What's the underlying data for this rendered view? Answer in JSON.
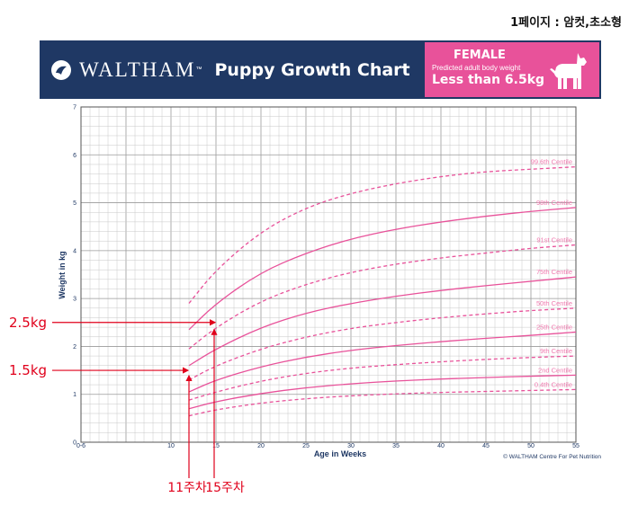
{
  "page_note": "1페이지 : 암컷,초소형",
  "banner": {
    "brand": "WALTHAM",
    "tm": "™",
    "title": "Puppy Growth Chart",
    "sex": "FEMALE",
    "predicted_label": "Predicted adult body weight",
    "weight_range": "Less than 6.5kg",
    "logo_icon": "waltham-logo-icon",
    "dog_icon": "dog-silhouette-icon",
    "colors": {
      "banner": "#1f3864",
      "pink": "#e8529a"
    }
  },
  "chart_data": {
    "type": "line",
    "xlabel": "Age in Weeks",
    "ylabel": "Weight in kg",
    "xlim": [
      0,
      55
    ],
    "ylim": [
      0,
      7
    ],
    "x_ticks": [
      "0-6",
      "10",
      "15",
      "20",
      "25",
      "30",
      "35",
      "40",
      "45",
      "50",
      "55"
    ],
    "y_ticks": [
      "0",
      "1",
      "2",
      "3",
      "4",
      "5",
      "6",
      "7"
    ],
    "grid": true,
    "line_color": "#e8529a",
    "series": [
      {
        "name": "99.6th Centile",
        "style": "dashed",
        "x": [
          12,
          15,
          20,
          25,
          30,
          35,
          40,
          45,
          50,
          55
        ],
        "y": [
          2.9,
          3.6,
          4.4,
          4.9,
          5.2,
          5.4,
          5.55,
          5.65,
          5.7,
          5.75
        ]
      },
      {
        "name": "98th Centile",
        "style": "solid",
        "x": [
          12,
          15,
          20,
          25,
          30,
          35,
          40,
          45,
          50,
          55
        ],
        "y": [
          2.35,
          2.9,
          3.55,
          3.95,
          4.25,
          4.45,
          4.6,
          4.72,
          4.82,
          4.9
        ]
      },
      {
        "name": "91st Centile",
        "style": "dashed",
        "x": [
          12,
          15,
          20,
          25,
          30,
          35,
          40,
          45,
          50,
          55
        ],
        "y": [
          1.95,
          2.4,
          2.95,
          3.3,
          3.55,
          3.72,
          3.85,
          3.95,
          4.05,
          4.12
        ]
      },
      {
        "name": "75th Centile",
        "style": "solid",
        "x": [
          12,
          15,
          20,
          25,
          30,
          35,
          40,
          45,
          50,
          55
        ],
        "y": [
          1.6,
          1.95,
          2.4,
          2.7,
          2.9,
          3.05,
          3.17,
          3.27,
          3.36,
          3.45
        ]
      },
      {
        "name": "50th Centile",
        "style": "dashed",
        "x": [
          12,
          15,
          20,
          25,
          30,
          35,
          40,
          45,
          50,
          55
        ],
        "y": [
          1.3,
          1.6,
          1.95,
          2.2,
          2.38,
          2.5,
          2.6,
          2.68,
          2.75,
          2.8
        ]
      },
      {
        "name": "25th Centile",
        "style": "solid",
        "x": [
          12,
          15,
          20,
          25,
          30,
          35,
          40,
          45,
          50,
          55
        ],
        "y": [
          1.05,
          1.3,
          1.58,
          1.78,
          1.92,
          2.02,
          2.1,
          2.17,
          2.23,
          2.3
        ]
      },
      {
        "name": "9th Centile",
        "style": "dashed",
        "x": [
          12,
          15,
          20,
          25,
          30,
          35,
          40,
          45,
          50,
          55
        ],
        "y": [
          0.88,
          1.05,
          1.28,
          1.44,
          1.55,
          1.62,
          1.68,
          1.73,
          1.77,
          1.8
        ]
      },
      {
        "name": "2nd Centile",
        "style": "solid",
        "x": [
          12,
          15,
          20,
          25,
          30,
          35,
          40,
          45,
          50,
          55
        ],
        "y": [
          0.7,
          0.85,
          1.02,
          1.14,
          1.22,
          1.28,
          1.32,
          1.35,
          1.38,
          1.4
        ]
      },
      {
        "name": "0.4th Centile",
        "style": "dashed",
        "x": [
          12,
          15,
          20,
          25,
          30,
          35,
          40,
          45,
          50,
          55
        ],
        "y": [
          0.55,
          0.68,
          0.82,
          0.91,
          0.97,
          1.01,
          1.04,
          1.06,
          1.08,
          1.1
        ]
      }
    ],
    "centile_labels": [
      {
        "text": "99.6th Centile",
        "y": 5.75
      },
      {
        "text": "98th Centile",
        "y": 4.9
      },
      {
        "text": "91st Centile",
        "y": 4.12
      },
      {
        "text": "75th Centile",
        "y": 3.45
      },
      {
        "text": "50th Centile",
        "y": 2.8
      },
      {
        "text": "25th Centile",
        "y": 2.3
      },
      {
        "text": "9th Centile",
        "y": 1.8
      },
      {
        "text": "2nd Centile",
        "y": 1.4
      },
      {
        "text": "0.4th Centile",
        "y": 1.1
      }
    ],
    "copyright": "© WALTHAM Centre For Pet Nutrition",
    "annotations": [
      {
        "text": "2.5kg",
        "y": 2.5,
        "target_x": 15,
        "color": "#e0001b"
      },
      {
        "text": "1.5kg",
        "y": 1.5,
        "target_x": 12,
        "color": "#e0001b"
      }
    ],
    "week_markers": [
      {
        "text": "11주차",
        "x": 12,
        "color": "#e0001b"
      },
      {
        "text": "15주차",
        "x": 15,
        "color": "#e0001b"
      }
    ]
  }
}
